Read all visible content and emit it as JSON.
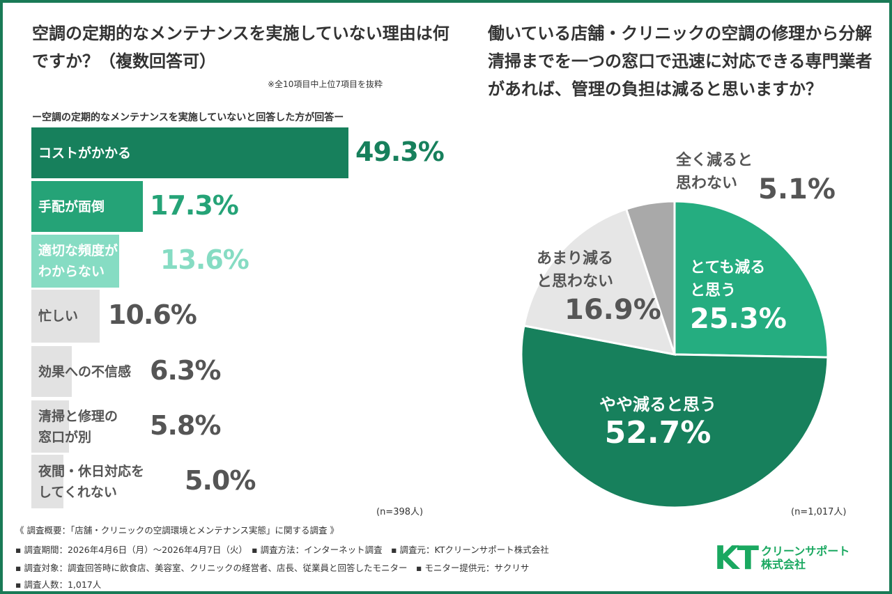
{
  "chart_data": [
    {
      "type": "bar",
      "orientation": "horizontal",
      "title": "空調の定期的なメンテナンスを実施していない理由は何ですか？（複数回答可）",
      "note": "※全10項目中上位7項目を抜粋",
      "subtitle": "ー空調の定期的なメンテナンスを実施していないと回答した方が回答ー",
      "categories": [
        "コストがかかる",
        "手配が面倒",
        "適切な頻度が\nわからない",
        "忙しい",
        "効果への不信感",
        "清掃と修理の\n窓口が別",
        "夜間・休日対応を\nしてくれない"
      ],
      "values": [
        49.3,
        17.3,
        13.6,
        10.6,
        6.3,
        5.8,
        5.0
      ],
      "value_labels": [
        "49.3%",
        "17.3%",
        "13.6%",
        "10.6%",
        "6.3%",
        "5.8%",
        "5.0%"
      ],
      "colors": [
        "#17805c",
        "#25a377",
        "#86dcc3",
        "#e2e2e2",
        "#e2e2e2",
        "#e2e2e2",
        "#e2e2e2"
      ],
      "value_colors": [
        "#17805c",
        "#25a377",
        "#86dcc3",
        "#555555",
        "#555555",
        "#555555",
        "#555555"
      ],
      "label_colors": [
        "#ffffff",
        "#ffffff",
        "#ffffff",
        "#555555",
        "#555555",
        "#555555",
        "#555555"
      ],
      "n": "(n=398人)"
    },
    {
      "type": "pie",
      "title": "働いている店舗・クリニックの空調の修理から分解清掃までを一つの窓口で迅速に対応できる専門業者があれば、管理の負担は減ると思いますか？",
      "categories": [
        "とても減ると思う",
        "やや減ると思う",
        "あまり減ると思わない",
        "全く減ると思わない"
      ],
      "values": [
        25.3,
        52.7,
        16.9,
        5.1
      ],
      "labels": [
        "とても減る\nと思う",
        "やや減ると思う",
        "あまり減る\nと思わない",
        "全く減ると\n思わない"
      ],
      "value_labels": [
        "25.3%",
        "52.7%",
        "16.9%",
        "5.1%"
      ],
      "colors": [
        "#25ad80",
        "#17805c",
        "#e6e6e6",
        "#a9a9a9"
      ],
      "n": "(n=1,017人)"
    }
  ],
  "footer": {
    "summary": "《 調査概要：「店舗・クリニックの空調環境とメンテナンス実態」に関する調査 》",
    "line1": "▪ 調査期間：2026年4月6日（月）～2026年4月7日（火）　▪ 調査方法：インターネット調査　▪ 調査元：KTクリーンサポート株式会社",
    "line2": "▪ 調査対象：調査回答時に飲食店、美容室、クリニックの経営者、店長、従業員と回答したモニター　▪ モニター提供元：サクリサ",
    "line3": "▪ 調査人数：1,017人"
  },
  "logo": {
    "mark": "KT",
    "company": "クリーンサポート\n株式会社"
  }
}
